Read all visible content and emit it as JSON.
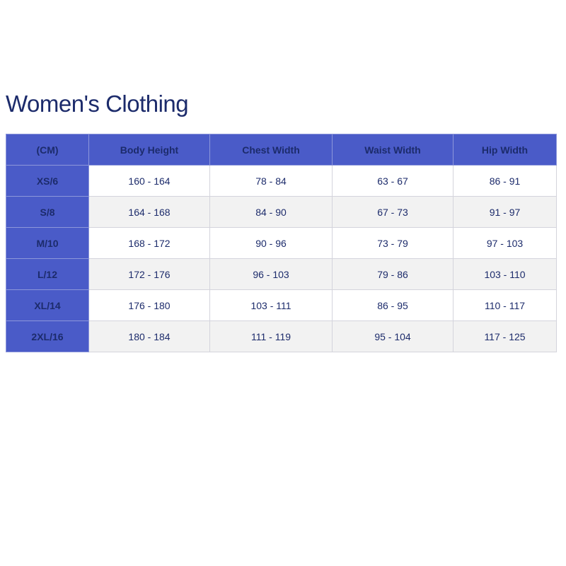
{
  "title": "Women's Clothing",
  "colors": {
    "header": "#4a5bc8",
    "text": "#1c2b6b",
    "alt_row": "#f2f2f2"
  },
  "table": {
    "headers": [
      "(CM)",
      "Body Height",
      "Chest Width",
      "Waist Width",
      "Hip Width"
    ],
    "rows": [
      [
        "XS/6",
        "160 - 164",
        "78 - 84",
        "63 - 67",
        "86 - 91"
      ],
      [
        "S/8",
        "164 - 168",
        "84 - 90",
        "67 - 73",
        "91 - 97"
      ],
      [
        "M/10",
        "168 - 172",
        "90 - 96",
        "73 - 79",
        "97 - 103"
      ],
      [
        "L/12",
        "172 - 176",
        "96 - 103",
        "79 - 86",
        "103 - 110"
      ],
      [
        "XL/14",
        "176 - 180",
        "103 - 111",
        "86 - 95",
        "110 - 117"
      ],
      [
        "2XL/16",
        "180 - 184",
        "111 - 119",
        "95 - 104",
        "117 - 125"
      ]
    ]
  }
}
